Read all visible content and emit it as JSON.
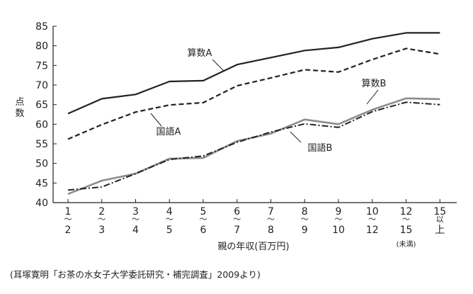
{
  "chart_data": {
    "type": "line",
    "ylabel": "点数",
    "xlabel": "親の年収(百万円)",
    "ylim": [
      40,
      85
    ],
    "yticks": [
      40,
      45,
      50,
      55,
      60,
      65,
      70,
      75,
      80,
      85
    ],
    "grid": false,
    "categories": [
      [
        "1",
        "～",
        "2"
      ],
      [
        "2",
        "～",
        "3"
      ],
      [
        "3",
        "～",
        "4"
      ],
      [
        "4",
        "～",
        "5"
      ],
      [
        "5",
        "～",
        "6"
      ],
      [
        "6",
        "～",
        "7"
      ],
      [
        "7",
        "～",
        "8"
      ],
      [
        "8",
        "～",
        "9"
      ],
      [
        "9",
        "～",
        "10"
      ],
      [
        "10",
        "～",
        "12"
      ],
      [
        "12",
        "～",
        "15",
        "(未満)"
      ],
      [
        "15",
        "以",
        "上"
      ]
    ],
    "series": [
      {
        "name": "算数A",
        "style": "solid",
        "color": "#222222",
        "values": [
          62.7,
          66.5,
          67.6,
          70.9,
          71.1,
          75.2,
          77.0,
          78.8,
          79.6,
          81.8,
          83.3,
          83.3
        ]
      },
      {
        "name": "国語A",
        "style": "dashed",
        "color": "#222222",
        "values": [
          56.2,
          59.9,
          63.1,
          64.9,
          65.5,
          69.8,
          71.8,
          73.9,
          73.3,
          76.5,
          79.3,
          77.9
        ]
      },
      {
        "name": "算数B",
        "style": "solid",
        "color": "#8c8c8c",
        "values": [
          42.2,
          45.6,
          47.4,
          51.2,
          51.4,
          55.7,
          57.6,
          61.2,
          60.0,
          63.7,
          66.6,
          66.4
        ]
      },
      {
        "name": "国語B",
        "style": "dashdot",
        "color": "#222222",
        "values": [
          43.2,
          44.0,
          47.4,
          51.0,
          51.9,
          55.4,
          58.0,
          60.1,
          59.2,
          63.2,
          65.6,
          65.0
        ]
      }
    ]
  },
  "source_note": "(耳塚寛明「お茶の水女子大学委託研究・補完調査」2009より)"
}
